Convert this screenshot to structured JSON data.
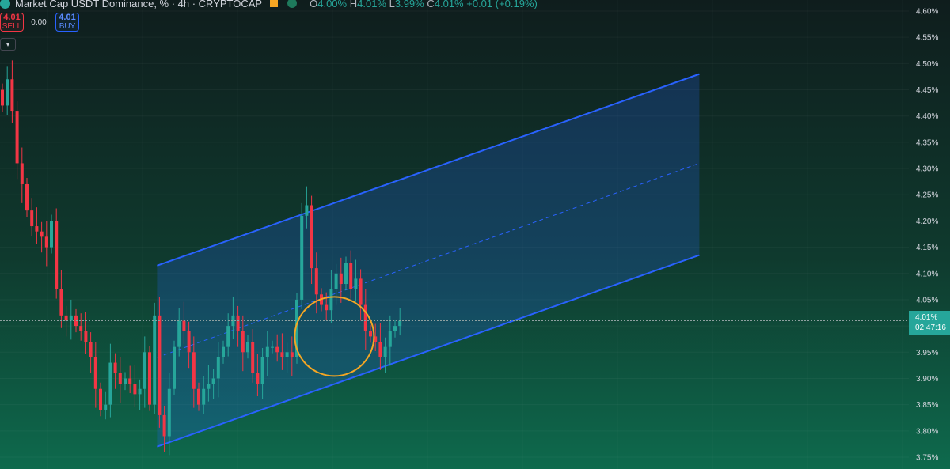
{
  "header": {
    "symbol": "Market Cap USDT Dominance, % · 4h · CRYPTOCAP",
    "ohlc": {
      "o_label": "O",
      "o": "4.00%",
      "h_label": "H",
      "h": "4.01%",
      "l_label": "L",
      "l": "3.99%",
      "c_label": "C",
      "c": "4.01%",
      "change": "+0.01 (+0.19%)"
    }
  },
  "trade": {
    "sell_price": "4.01",
    "sell_label": "SELL",
    "spread": "0.00",
    "buy_price": "4.01",
    "buy_label": "BUY"
  },
  "current": {
    "price": "4.01%",
    "countdown": "02:47:16"
  },
  "colors": {
    "up": "#26a69a",
    "down": "#f23645",
    "channel": "#2962ff",
    "highlight": "#f5a623"
  },
  "chart_data": {
    "type": "candlestick",
    "ylim": [
      3.75,
      4.6
    ],
    "y_ticks": [
      "4.60%",
      "4.55%",
      "4.50%",
      "4.45%",
      "4.40%",
      "4.35%",
      "4.30%",
      "4.25%",
      "4.20%",
      "4.15%",
      "4.10%",
      "4.05%",
      "4.00%",
      "3.95%",
      "3.90%",
      "3.85%",
      "3.80%",
      "3.75%"
    ],
    "y_tick_values": [
      4.6,
      4.55,
      4.5,
      4.45,
      4.4,
      4.35,
      4.3,
      4.25,
      4.2,
      4.15,
      4.1,
      4.05,
      4.0,
      3.95,
      3.9,
      3.85,
      3.8,
      3.75
    ],
    "closes": [
      4.42,
      4.47,
      4.41,
      4.31,
      4.27,
      4.22,
      4.19,
      4.18,
      4.17,
      4.15,
      4.2,
      4.07,
      4.02,
      4.01,
      4.02,
      4.0,
      3.99,
      3.97,
      3.94,
      3.88,
      3.84,
      3.85,
      3.93,
      3.91,
      3.89,
      3.9,
      3.89,
      3.87,
      3.88,
      3.95,
      3.85,
      4.02,
      3.83,
      3.79,
      3.88,
      3.96,
      4.01,
      3.99,
      3.95,
      3.88,
      3.85,
      3.88,
      3.89,
      3.9,
      3.94,
      3.96,
      4.0,
      4.02,
      3.99,
      3.95,
      3.97,
      3.91,
      3.89,
      3.94,
      3.96,
      3.96,
      3.95,
      3.94,
      3.95,
      3.94,
      4.05,
      4.21,
      4.23,
      4.11,
      4.06,
      4.04,
      4.03,
      4.07,
      4.1,
      4.08,
      4.12,
      4.07,
      4.09,
      4.04,
      3.99,
      3.98,
      3.97,
      3.94,
      3.96,
      3.99,
      4.0,
      4.01
    ],
    "channel": {
      "upper": {
        "start": 4.115,
        "end": 4.48
      },
      "middle": {
        "start": 3.94,
        "end": 4.31
      },
      "lower": {
        "start": 3.77,
        "end": 4.135
      },
      "start_index": 32,
      "end_index": 142
    },
    "highlight": {
      "center_index": 67,
      "center_value": 3.98
    }
  }
}
